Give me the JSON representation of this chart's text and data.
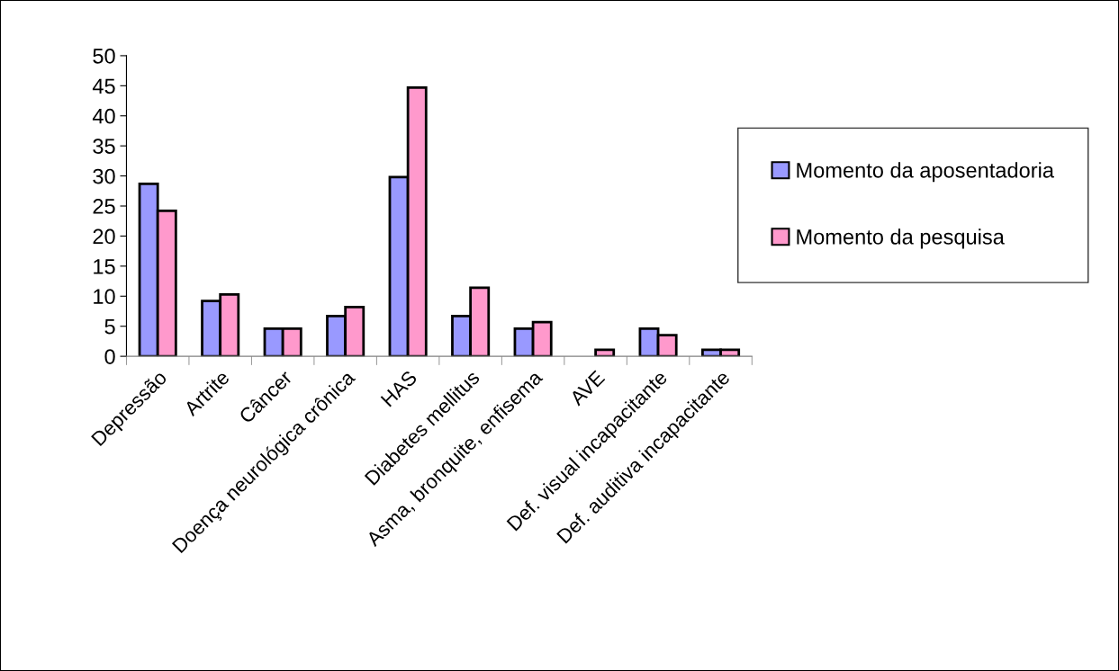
{
  "chart_data": {
    "type": "bar",
    "categories": [
      "Depressão",
      "Artrite",
      "Câncer",
      "Doença neurológica crônica",
      "HAS",
      "Diabetes mellitus",
      "Asma, bronquite, enfisema",
      "AVE",
      "Def. visual incapacitante",
      "Def. auditiva incapacitante"
    ],
    "series": [
      {
        "name": "Momento da aposentadoria",
        "color": "#9999ff",
        "values": [
          28.7,
          9.2,
          4.6,
          6.7,
          29.8,
          6.7,
          4.6,
          0,
          4.6,
          1.1
        ]
      },
      {
        "name": "Momento da pesquisa",
        "color": "#ff99cc",
        "values": [
          24.2,
          10.3,
          4.6,
          8.2,
          44.7,
          11.4,
          5.7,
          1.1,
          3.5,
          1.1
        ]
      }
    ],
    "ylim": [
      0,
      50
    ],
    "yticks": [
      0,
      5,
      10,
      15,
      20,
      25,
      30,
      35,
      40,
      45,
      50
    ],
    "grid": false,
    "legend": "right"
  }
}
